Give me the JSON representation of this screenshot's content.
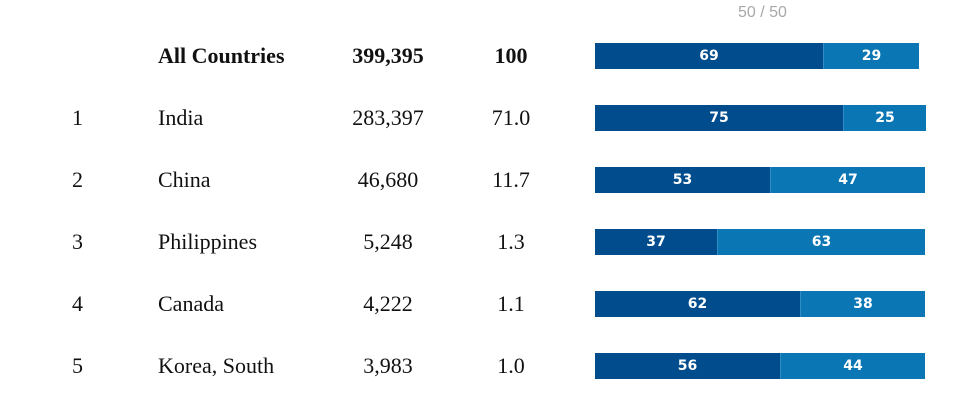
{
  "page_counter": "50 / 50",
  "colors": {
    "dark_segment": "#004c8c",
    "light_segment": "#0a76b4",
    "counter": "#a8a8a8"
  },
  "rows": [
    {
      "rank": "",
      "country": "All Countries",
      "count": "399,395",
      "percent": "100",
      "share_a": 69,
      "share_b": 29,
      "bold": true
    },
    {
      "rank": "1",
      "country": "India",
      "count": "283,397",
      "percent": "71.0",
      "share_a": 75,
      "share_b": 25,
      "bold": false
    },
    {
      "rank": "2",
      "country": "China",
      "count": "46,680",
      "percent": "11.7",
      "share_a": 53,
      "share_b": 47,
      "bold": false
    },
    {
      "rank": "3",
      "country": "Philippines",
      "count": "5,248",
      "percent": "1.3",
      "share_a": 37,
      "share_b": 63,
      "bold": false
    },
    {
      "rank": "4",
      "country": "Canada",
      "count": "4,222",
      "percent": "1.1",
      "share_a": 62,
      "share_b": 38,
      "bold": false
    },
    {
      "rank": "5",
      "country": "Korea, South",
      "count": "3,983",
      "percent": "1.0",
      "share_a": 56,
      "share_b": 44,
      "bold": false
    }
  ]
}
